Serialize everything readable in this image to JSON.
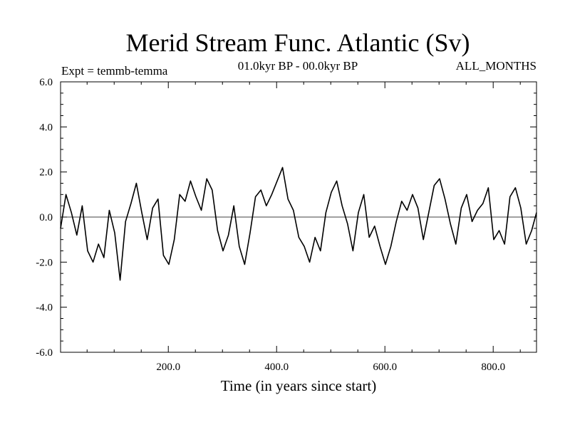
{
  "chart_data": {
    "type": "line",
    "title": "Merid Stream Func. Atlantic (Sv)",
    "subtitle_left": "Expt = temmb-temma",
    "subtitle_center": "01.0kyr BP - 00.0kyr BP",
    "subtitle_right": "ALL_MONTHS",
    "xlabel": "Time (in years since start)",
    "ylabel": "",
    "xlim": [
      1,
      880
    ],
    "ylim": [
      -6.0,
      6.0
    ],
    "xticks": [
      200,
      400,
      600,
      800
    ],
    "xtick_labels": [
      "200.0",
      "400.0",
      "600.0",
      "800.0"
    ],
    "yticks": [
      6.0,
      4.0,
      2.0,
      0.0,
      -2.0,
      -4.0,
      -6.0
    ],
    "ytick_labels": [
      "6.0",
      "4.0",
      "2.0",
      "0.0",
      "-2.0",
      "-4.0",
      "-6.0"
    ],
    "zero_line": true,
    "grid": false,
    "series": [
      {
        "color": "#000000",
        "x": [
          1,
          11,
          21,
          31,
          41,
          51,
          61,
          71,
          81,
          91,
          101,
          111,
          121,
          131,
          141,
          151,
          161,
          171,
          181,
          191,
          201,
          211,
          221,
          231,
          241,
          251,
          261,
          271,
          281,
          291,
          301,
          311,
          321,
          331,
          341,
          351,
          361,
          371,
          381,
          391,
          401,
          411,
          421,
          431,
          441,
          451,
          461,
          471,
          481,
          491,
          501,
          511,
          521,
          531,
          541,
          551,
          561,
          571,
          581,
          591,
          601,
          611,
          621,
          631,
          641,
          651,
          661,
          671,
          681,
          691,
          701,
          711,
          721,
          731,
          741,
          751,
          761,
          771,
          781,
          791,
          801,
          811,
          821,
          831,
          841,
          851,
          861,
          871,
          880
        ],
        "y": [
          -0.5,
          1.0,
          0.2,
          -0.8,
          0.5,
          -1.5,
          -2.0,
          -1.2,
          -1.8,
          0.3,
          -0.7,
          -2.8,
          -0.2,
          0.6,
          1.5,
          0.2,
          -1.0,
          0.4,
          0.8,
          -1.7,
          -2.1,
          -1.0,
          1.0,
          0.7,
          1.6,
          0.9,
          0.3,
          1.7,
          1.2,
          -0.6,
          -1.5,
          -0.8,
          0.5,
          -1.3,
          -2.1,
          -0.7,
          0.9,
          1.2,
          0.5,
          1.0,
          1.6,
          2.2,
          0.8,
          0.3,
          -0.9,
          -1.3,
          -2.0,
          -0.9,
          -1.5,
          0.2,
          1.1,
          1.6,
          0.5,
          -0.3,
          -1.5,
          0.2,
          1.0,
          -0.9,
          -0.4,
          -1.3,
          -2.1,
          -1.3,
          -0.2,
          0.7,
          0.3,
          1.0,
          0.4,
          -1.0,
          0.2,
          1.4,
          1.7,
          0.8,
          -0.3,
          -1.2,
          0.4,
          1.0,
          -0.2,
          0.3,
          0.6,
          1.3,
          -1.0,
          -0.6,
          -1.2,
          0.9,
          1.3,
          0.4,
          -1.2,
          -0.6,
          0.2
        ]
      }
    ]
  }
}
